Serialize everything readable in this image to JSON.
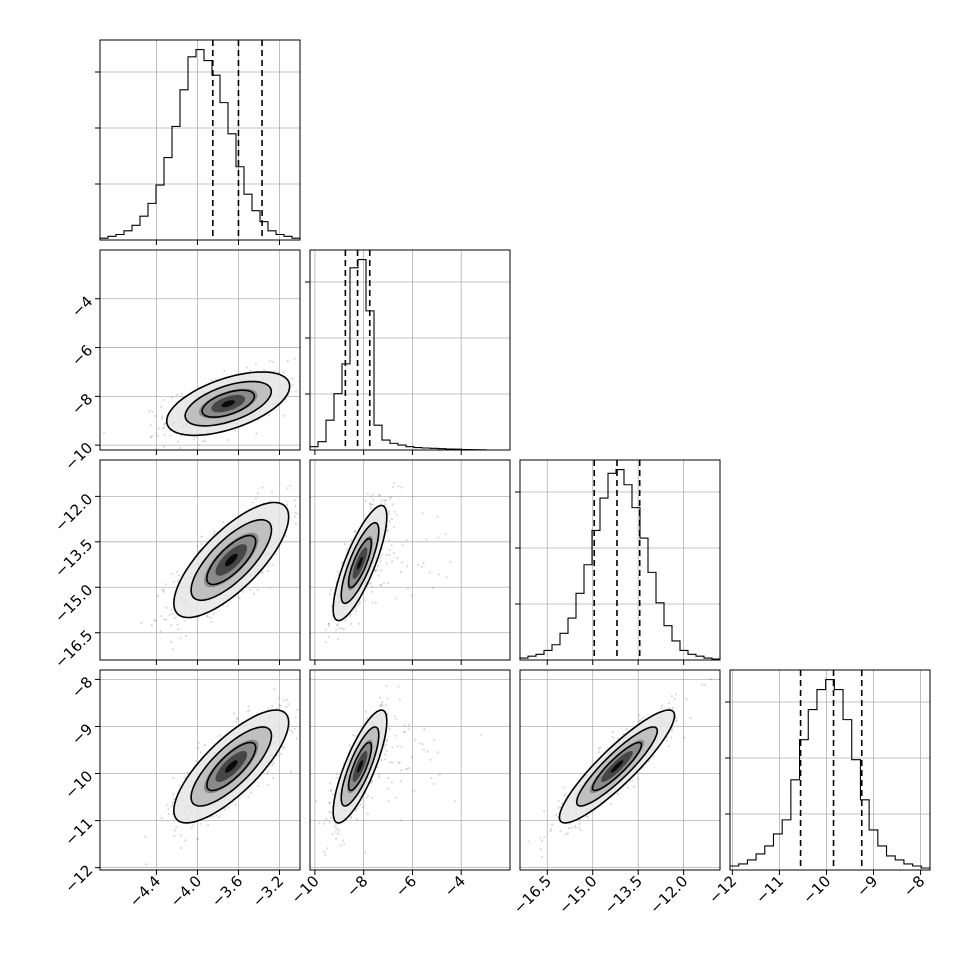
{
  "chart_data": {
    "type": "corner",
    "grid": true,
    "parameters": [
      {
        "range": [
          -4.95,
          -3.0
        ],
        "ticks": [
          -4.4,
          -4.0,
          -3.6,
          -3.2
        ],
        "tick_labels": [
          "−4.4",
          "−4.0",
          "−3.6",
          "−3.2"
        ]
      },
      {
        "range": [
          -10.2,
          -2.0
        ],
        "ticks": [
          -10,
          -8,
          -6,
          -4
        ],
        "tick_labels": [
          "−10",
          "−8",
          "−6",
          "−4"
        ]
      },
      {
        "range": [
          -17.4,
          -10.8
        ],
        "ticks": [
          -16.5,
          -15.0,
          -13.5,
          -12.0
        ],
        "tick_labels": [
          "−16.5",
          "−15.0",
          "−13.5",
          "−12.0"
        ]
      },
      {
        "range": [
          -12.05,
          -7.8
        ],
        "ticks": [
          -12,
          -11,
          -10,
          -9,
          -8
        ],
        "tick_labels": [
          "−12",
          "−11",
          "−10",
          "−9",
          "−8"
        ]
      }
    ],
    "histograms": [
      {
        "edges_range": [
          -4.95,
          -3.0
        ],
        "counts": [
          1,
          2,
          3,
          5,
          8,
          13,
          20,
          30,
          45,
          62,
          82,
          100,
          104,
          98,
          90,
          75,
          58,
          40,
          25,
          16,
          10,
          5,
          3,
          2,
          1
        ],
        "quantiles": [
          -3.85,
          -3.6,
          -3.37
        ]
      },
      {
        "edges_range": [
          -10.2,
          -2.0
        ],
        "counts": [
          2,
          5,
          18,
          34,
          52,
          110,
          115,
          84,
          15,
          6,
          4,
          3,
          2,
          1.5,
          1.2,
          1,
          0.8,
          0.6,
          0.5,
          0.3,
          0.2,
          0.1,
          0,
          0,
          0
        ],
        "quantiles": [
          -8.75,
          -8.25,
          -7.75
        ]
      },
      {
        "edges_range": [
          -17.4,
          -10.8
        ],
        "counts": [
          1,
          2,
          3,
          5,
          8,
          14,
          22,
          35,
          50,
          68,
          85,
          98,
          100,
          92,
          80,
          64,
          46,
          30,
          18,
          10,
          5,
          3,
          2,
          1,
          0.5
        ],
        "quantiles": [
          -14.95,
          -14.2,
          -13.45
        ]
      },
      {
        "edges_range": [
          -12.05,
          -7.8
        ],
        "counts": [
          2,
          3,
          5,
          8,
          12,
          18,
          25,
          45,
          65,
          80,
          90,
          95,
          90,
          75,
          55,
          35,
          20,
          12,
          7,
          5,
          3,
          2,
          1
        ],
        "quantiles": [
          -10.55,
          -9.85,
          -9.25
        ]
      }
    ],
    "pairs": [
      {
        "x": 0,
        "y": 1,
        "center": [
          -3.7,
          -8.3
        ],
        "sd": [
          0.3,
          0.65
        ],
        "rho": 0.55
      },
      {
        "x": 0,
        "y": 2,
        "center": [
          -3.67,
          -14.1
        ],
        "sd": [
          0.28,
          0.95
        ],
        "rho": 0.75
      },
      {
        "x": 0,
        "y": 3,
        "center": [
          -3.67,
          -9.85
        ],
        "sd": [
          0.28,
          0.6
        ],
        "rho": 0.78
      },
      {
        "x": 1,
        "y": 2,
        "center": [
          -8.15,
          -14.2
        ],
        "sd": [
          0.55,
          0.95
        ],
        "rho": 0.8
      },
      {
        "x": 1,
        "y": 3,
        "center": [
          -8.15,
          -9.85
        ],
        "sd": [
          0.55,
          0.6
        ],
        "rho": 0.8
      },
      {
        "x": 2,
        "y": 3,
        "center": [
          -14.2,
          -9.85
        ],
        "sd": [
          0.95,
          0.6
        ],
        "rho": 0.9
      }
    ]
  }
}
